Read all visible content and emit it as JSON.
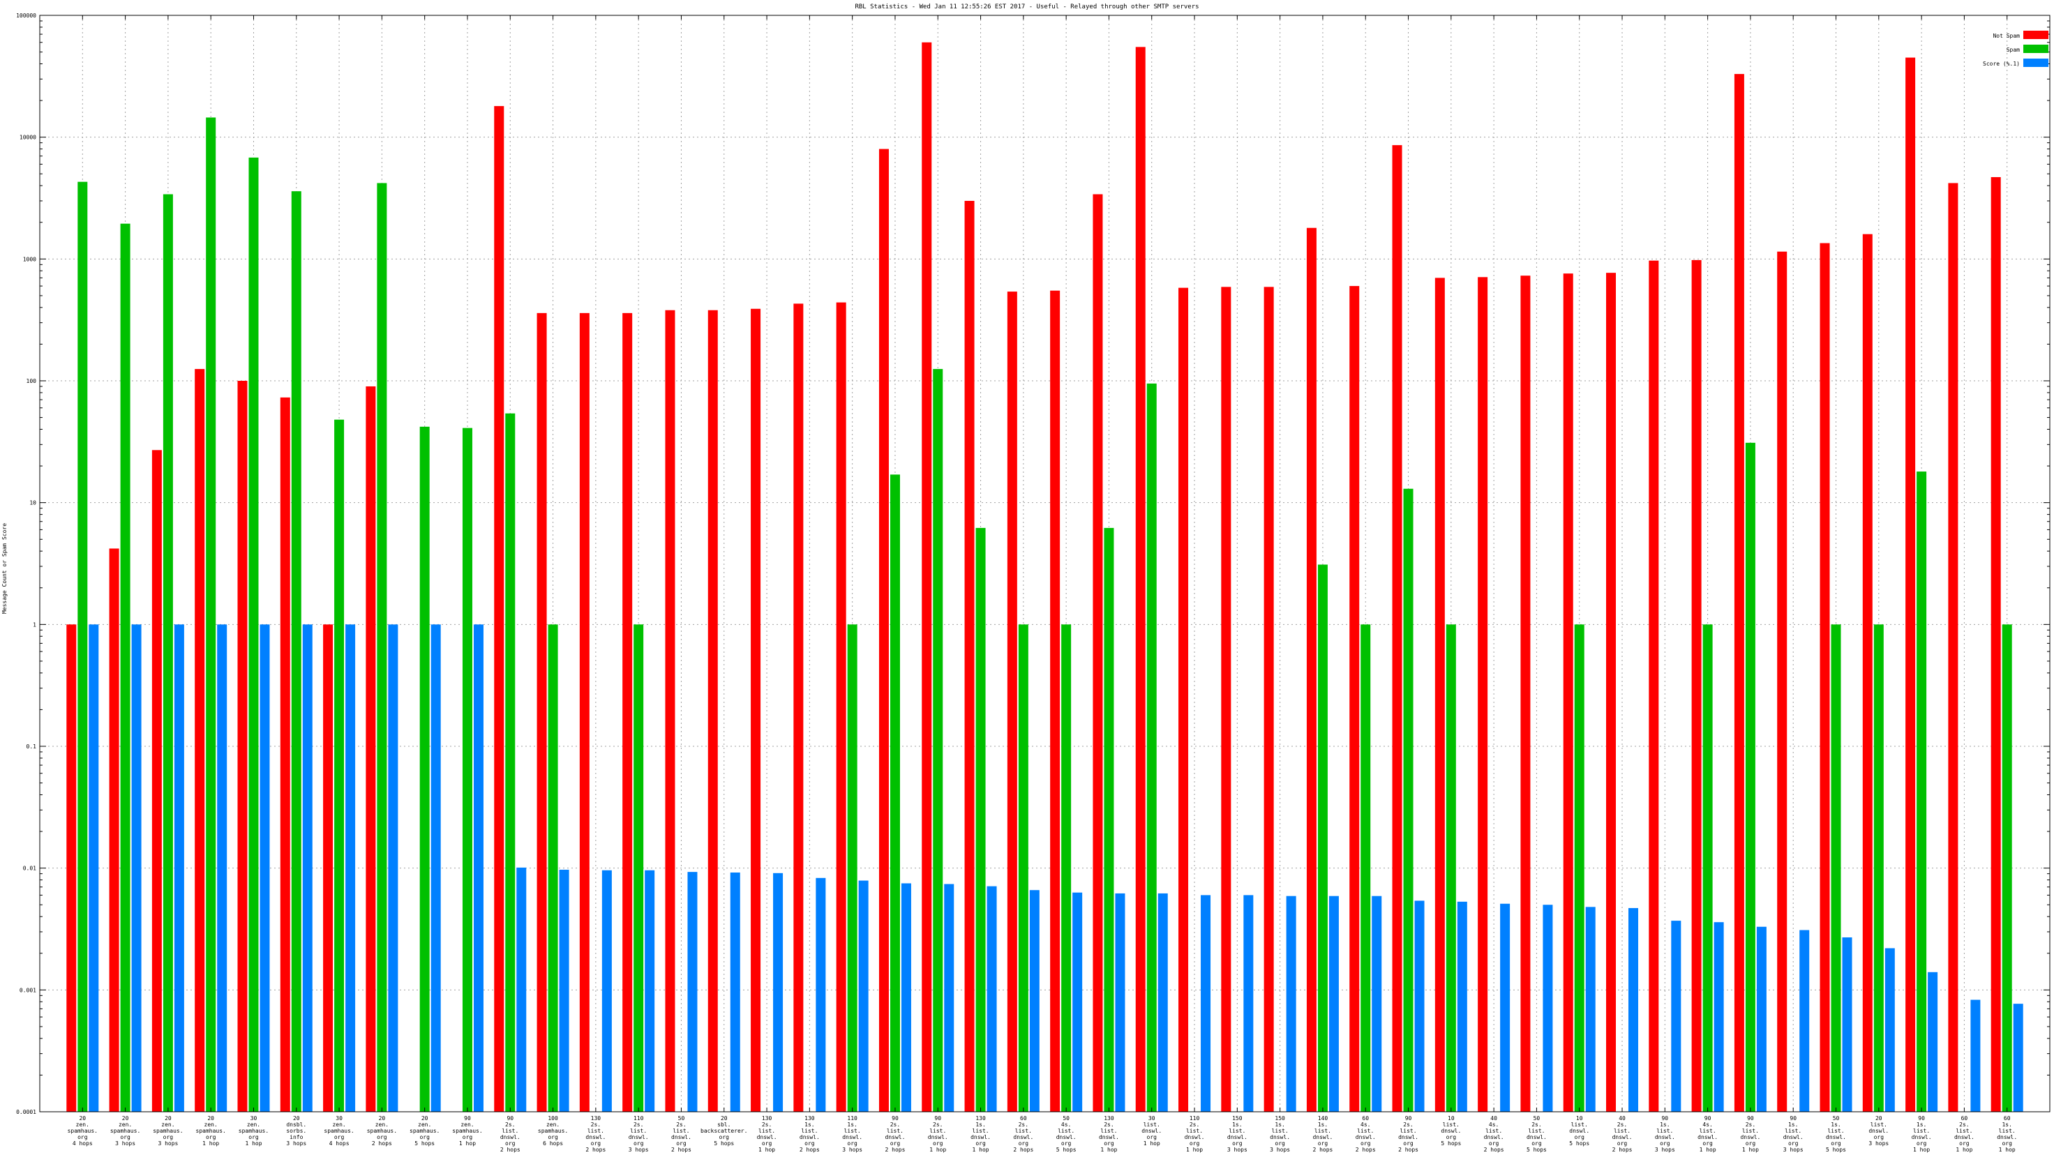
{
  "chart_data": {
    "type": "bar",
    "title": "RBL Statistics - Wed Jan 11 12:55:26 EST 2017 - Useful - Relayed through other SMTP servers",
    "ylabel": "Message Count or Spam Score",
    "xlabel": "",
    "yscale": "log",
    "ylim": [
      0.0001,
      100000
    ],
    "yticks": [
      {
        "value": 0.0001,
        "label": "0.0001"
      },
      {
        "value": 0.001,
        "label": "0.001"
      },
      {
        "value": 0.01,
        "label": "0.01"
      },
      {
        "value": 0.1,
        "label": "0.1"
      },
      {
        "value": 1,
        "label": "1"
      },
      {
        "value": 10,
        "label": "10"
      },
      {
        "value": 100,
        "label": "100"
      },
      {
        "value": 1000,
        "label": "1000"
      },
      {
        "value": 10000,
        "label": "10000"
      },
      {
        "value": 100000,
        "label": "100000"
      }
    ],
    "grid": true,
    "legend_position": "top-right",
    "categories": [
      [
        "20",
        "zen.",
        "spamhaus.",
        "org",
        "4 hops"
      ],
      [
        "20",
        "zen.",
        "spamhaus.",
        "org",
        "3 hops"
      ],
      [
        "20",
        "zen.",
        "spamhaus.",
        "org",
        "3 hops"
      ],
      [
        "20",
        "zen.",
        "spamhaus.",
        "org",
        "1 hop"
      ],
      [
        "30",
        "zen.",
        "spamhaus.",
        "org",
        "1 hop"
      ],
      [
        "20",
        "dnsbl.",
        "sorbs.",
        "info",
        "3 hops"
      ],
      [
        "30",
        "zen.",
        "spamhaus.",
        "org",
        "4 hops"
      ],
      [
        "20",
        "zen.",
        "spamhaus.",
        "org",
        "2 hops"
      ],
      [
        "20",
        "zen.",
        "spamhaus.",
        "org",
        "5 hops"
      ],
      [
        "90",
        "zen.",
        "spamhaus.",
        "org",
        "1 hop"
      ],
      [
        "90",
        "2s.",
        "list.",
        "dnswl.",
        "org",
        "2 hops"
      ],
      [
        "100",
        "zen.",
        "spamhaus.",
        "org",
        "6 hops"
      ],
      [
        "130",
        "2s.",
        "list.",
        "dnswl.",
        "org",
        "2 hops"
      ],
      [
        "110",
        "2s.",
        "list.",
        "dnswl.",
        "org",
        "3 hops"
      ],
      [
        "50",
        "2s.",
        "list.",
        "dnswl.",
        "org",
        "2 hops"
      ],
      [
        "20",
        "sbl.",
        "backscatterer.",
        "org",
        "5 hops"
      ],
      [
        "130",
        "2s.",
        "list.",
        "dnswl.",
        "org",
        "1 hop"
      ],
      [
        "130",
        "1s.",
        "list.",
        "dnswl.",
        "org",
        "2 hops"
      ],
      [
        "110",
        "1s.",
        "list.",
        "dnswl.",
        "org",
        "3 hops"
      ],
      [
        "90",
        "2s.",
        "list.",
        "dnswl.",
        "org",
        "2 hops"
      ],
      [
        "90",
        "2s.",
        "list.",
        "dnswl.",
        "org",
        "1 hop"
      ],
      [
        "130",
        "1s.",
        "list.",
        "dnswl.",
        "org",
        "1 hop"
      ],
      [
        "60",
        "2s.",
        "list.",
        "dnswl.",
        "org",
        "2 hops"
      ],
      [
        "50",
        "4s.",
        "list.",
        "dnswl.",
        "org",
        "5 hops"
      ],
      [
        "130",
        "2s.",
        "list.",
        "dnswl.",
        "org",
        "1 hop"
      ],
      [
        "30",
        "list.",
        "dnswl.",
        "org",
        "1 hop"
      ],
      [
        "110",
        "2s.",
        "list.",
        "dnswl.",
        "org",
        "1 hop"
      ],
      [
        "150",
        "1s.",
        "list.",
        "dnswl.",
        "org",
        "3 hops"
      ],
      [
        "150",
        "1s.",
        "list.",
        "dnswl.",
        "org",
        "3 hops"
      ],
      [
        "140",
        "1s.",
        "list.",
        "dnswl.",
        "org",
        "2 hops"
      ],
      [
        "60",
        "4s.",
        "list.",
        "dnswl.",
        "org",
        "2 hops"
      ],
      [
        "90",
        "2s.",
        "list.",
        "dnswl.",
        "org",
        "2 hops"
      ],
      [
        "10",
        "list.",
        "dnswl.",
        "org",
        "5 hops"
      ],
      [
        "40",
        "4s.",
        "list.",
        "dnswl.",
        "org",
        "2 hops"
      ],
      [
        "50",
        "2s.",
        "list.",
        "dnswl.",
        "org",
        "5 hops"
      ],
      [
        "10",
        "list.",
        "dnswl.",
        "org",
        "5 hops"
      ],
      [
        "40",
        "2s.",
        "list.",
        "dnswl.",
        "org",
        "2 hops"
      ],
      [
        "90",
        "1s.",
        "list.",
        "dnswl.",
        "org",
        "3 hops"
      ],
      [
        "90",
        "4s.",
        "list.",
        "dnswl.",
        "org",
        "1 hop"
      ],
      [
        "90",
        "2s.",
        "list.",
        "dnswl.",
        "org",
        "1 hop"
      ],
      [
        "90",
        "1s.",
        "list.",
        "dnswl.",
        "org",
        "3 hops"
      ],
      [
        "50",
        "1s.",
        "list.",
        "dnswl.",
        "org",
        "5 hops"
      ],
      [
        "20",
        "list.",
        "dnswl.",
        "org",
        "3 hops"
      ],
      [
        "90",
        "1s.",
        "list.",
        "dnswl.",
        "org",
        "1 hop"
      ],
      [
        "60",
        "2s.",
        "list.",
        "dnswl.",
        "org",
        "1 hop"
      ],
      [
        "60",
        "1s.",
        "list.",
        "dnswl.",
        "org",
        "1 hop"
      ]
    ],
    "series": [
      {
        "name": "Not Spam",
        "color": "#ff0000",
        "values": [
          1,
          4.2,
          27,
          125,
          100,
          73,
          1,
          90,
          null,
          null,
          18000,
          360,
          360,
          360,
          380,
          380,
          390,
          430,
          440,
          8000,
          60000,
          3000,
          540,
          550,
          3400,
          55000,
          580,
          590,
          590,
          1800,
          600,
          8600,
          700,
          710,
          730,
          760,
          770,
          970,
          980,
          33000,
          1150,
          1350,
          1600,
          45000,
          4200,
          4700
        ]
      },
      {
        "name": "Spam",
        "color": "#00c000",
        "values": [
          4300,
          1950,
          3400,
          14500,
          6800,
          3600,
          48,
          4200,
          42,
          41,
          54,
          1,
          null,
          1,
          null,
          null,
          null,
          null,
          1,
          17,
          125,
          6.2,
          1,
          1,
          6.2,
          95,
          null,
          null,
          null,
          3.1,
          1,
          13,
          1,
          null,
          null,
          1,
          null,
          null,
          1,
          31,
          null,
          1,
          1,
          18,
          null,
          1
        ]
      },
      {
        "name": "Score (%.1)",
        "color": "#0080ff",
        "values": [
          1,
          1,
          1,
          1,
          1,
          1,
          1,
          1,
          1,
          1,
          0.0101,
          0.0097,
          0.0096,
          0.0096,
          0.0093,
          0.0092,
          0.0091,
          0.0083,
          0.0079,
          0.0075,
          0.0074,
          0.0071,
          0.0066,
          0.0063,
          0.0062,
          0.0062,
          0.006,
          0.006,
          0.0059,
          0.0059,
          0.0059,
          0.0054,
          0.0053,
          0.0051,
          0.005,
          0.0048,
          0.0047,
          0.0037,
          0.0036,
          0.0033,
          0.0031,
          0.0027,
          0.0022,
          0.0014,
          0.00083,
          0.00077
        ]
      }
    ]
  }
}
